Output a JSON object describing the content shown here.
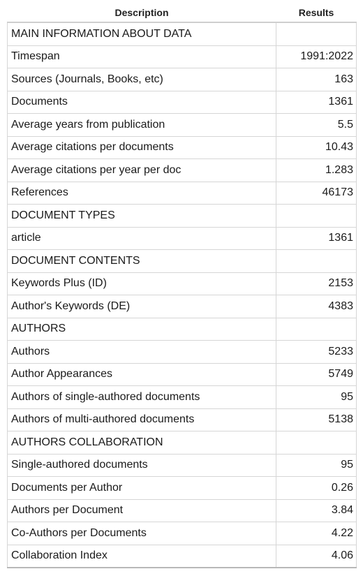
{
  "table": {
    "headers": {
      "description": "Description",
      "results": "Results"
    },
    "rows": [
      {
        "description": "MAIN INFORMATION ABOUT DATA",
        "results": ""
      },
      {
        "description": "Timespan",
        "results": "1991:2022"
      },
      {
        "description": "Sources (Journals, Books, etc)",
        "results": "163"
      },
      {
        "description": "Documents",
        "results": "1361"
      },
      {
        "description": "Average years from publication",
        "results": "5.5"
      },
      {
        "description": "Average citations per documents",
        "results": "10.43"
      },
      {
        "description": "Average citations per year per doc",
        "results": "1.283"
      },
      {
        "description": "References",
        "results": "46173"
      },
      {
        "description": "DOCUMENT TYPES",
        "results": ""
      },
      {
        "description": "article",
        "results": "1361"
      },
      {
        "description": "DOCUMENT CONTENTS",
        "results": ""
      },
      {
        "description": "Keywords Plus (ID)",
        "results": "2153"
      },
      {
        "description": "Author's Keywords (DE)",
        "results": "4383"
      },
      {
        "description": "AUTHORS",
        "results": ""
      },
      {
        "description": "Authors",
        "results": "5233"
      },
      {
        "description": "Author Appearances",
        "results": "5749"
      },
      {
        "description": "Authors of single-authored documents",
        "results": "95"
      },
      {
        "description": "Authors of multi-authored documents",
        "results": "5138"
      },
      {
        "description": "AUTHORS COLLABORATION",
        "results": ""
      },
      {
        "description": "Single-authored documents",
        "results": "95"
      },
      {
        "description": "Documents per Author",
        "results": "0.26"
      },
      {
        "description": "Authors per Document",
        "results": "3.84"
      },
      {
        "description": "Co-Authors per Documents",
        "results": "4.22"
      },
      {
        "description": "Collaboration Index",
        "results": "4.06"
      }
    ]
  }
}
